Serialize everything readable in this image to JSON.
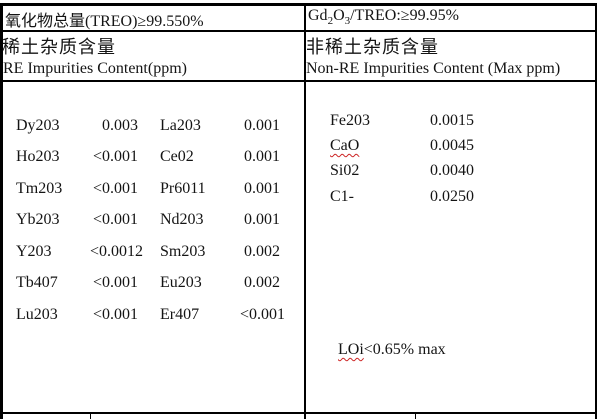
{
  "colors": {
    "border": "#000000",
    "spellcheck_underline": "#cc2222",
    "background": "#ffffff"
  },
  "header": {
    "left_total": "氧化物总量(TREO)≥99.550%",
    "right_total": {
      "p1": "Gd",
      "s1": "2",
      "p2": "O",
      "s2": "3",
      "p3": "/TREO:≥99.95%"
    },
    "left_cn": "稀土杂质含量",
    "left_en": "RE Impurities Content(ppm)",
    "right_cn": "非稀土杂质含量",
    "right_en": "Non-RE Impurities Content (Max ppm)"
  },
  "re": {
    "rows": [
      {
        "e1": "Dy203",
        "v1": "0.003",
        "e2": "La203",
        "v2": "0.001"
      },
      {
        "e1": "Ho203",
        "v1": "<0.001",
        "e2": "Ce02",
        "v2": "0.001"
      },
      {
        "e1": "Tm203",
        "v1": "<0.001",
        "e2": "Pr6011",
        "v2": "0.001"
      },
      {
        "e1": "Yb203",
        "v1": "<0.001",
        "e2": "Nd203",
        "v2": "0.001"
      },
      {
        "e1": "Y203",
        "v1": "<0.0012",
        "e2": "Sm203",
        "v2": "0.002"
      },
      {
        "e1": "Tb407",
        "v1": "<0.001",
        "e2": "Eu203",
        "v2": "0.002"
      },
      {
        "e1": "Lu203",
        "v1": "<0.001",
        "e2": "Er407",
        "v2": "<0.001"
      }
    ]
  },
  "nre": {
    "rows": [
      {
        "name": "Fe203",
        "value": "0.0015"
      },
      {
        "name": "CaO",
        "value": "0.0045"
      },
      {
        "name": "Si02",
        "value": "0.0040"
      },
      {
        "name": "C1-",
        "value": "0.0250"
      }
    ],
    "loi_label": "LOi",
    "loi_rest": "<0.65% max"
  }
}
